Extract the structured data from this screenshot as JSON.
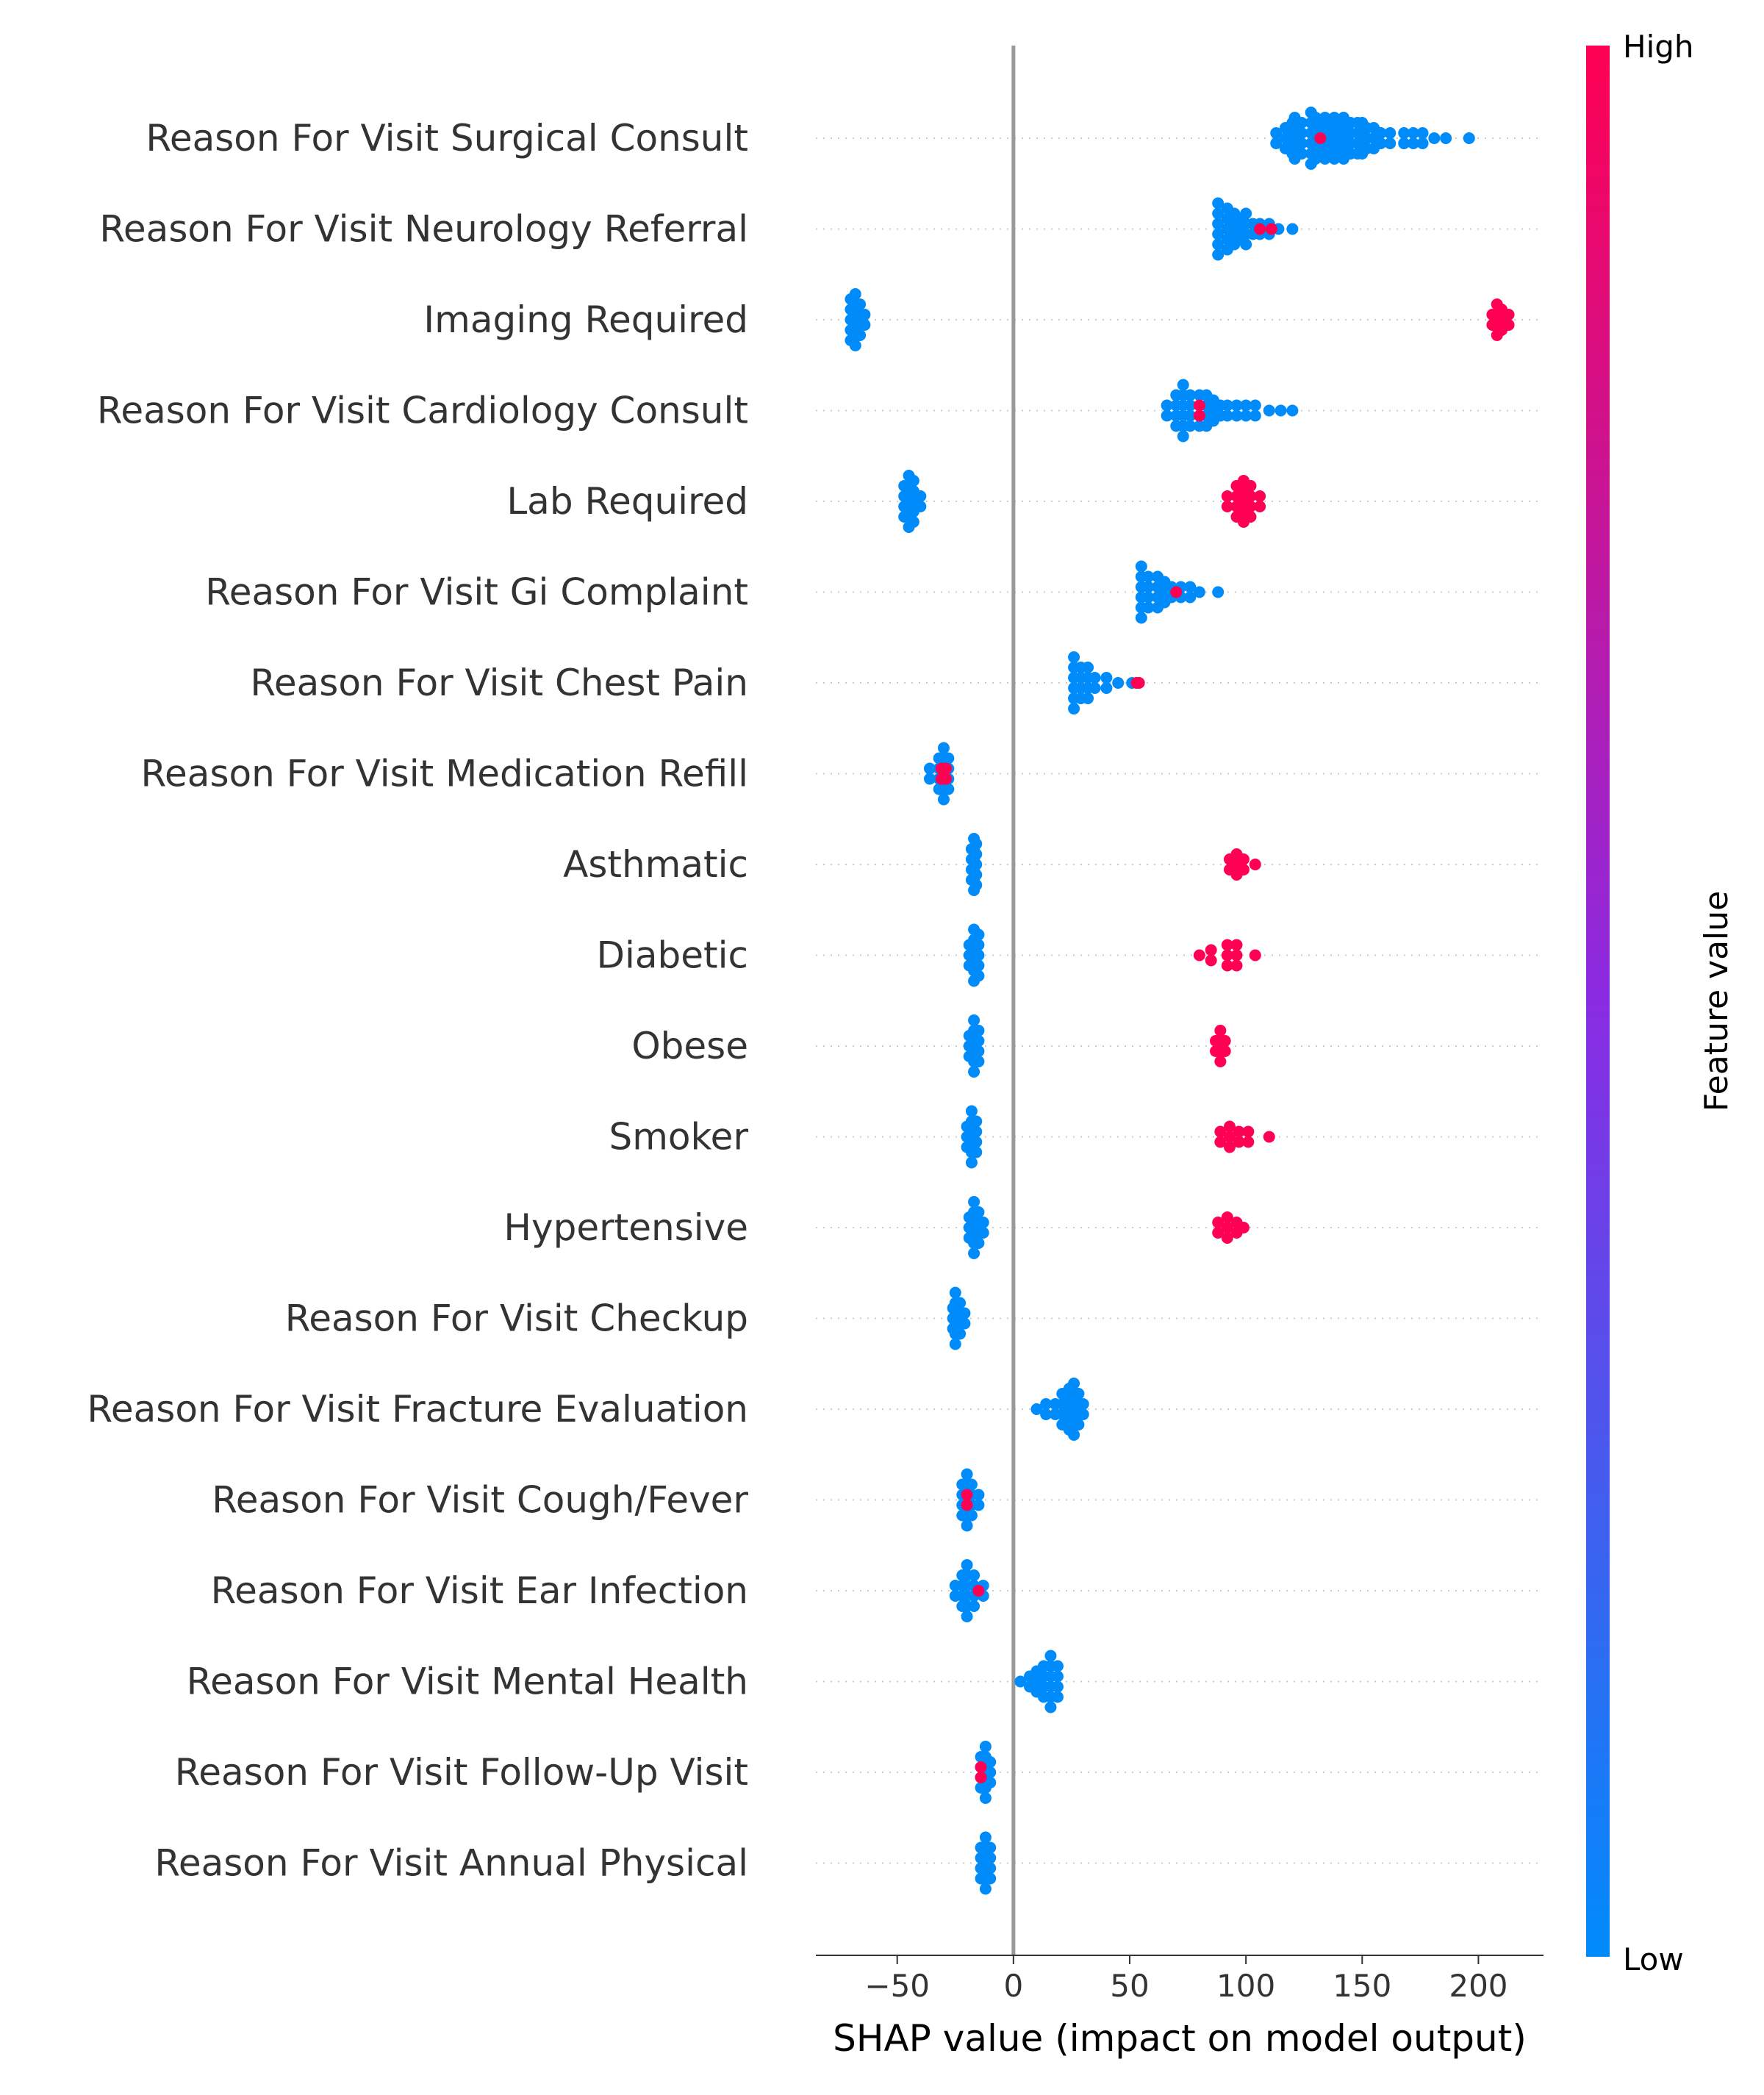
{
  "chart_data": {
    "type": "scatter",
    "subtype": "shap-beeswarm",
    "xlabel": "SHAP value (impact on model output)",
    "xlim": [
      -85,
      228
    ],
    "xticks": [
      {
        "value": -50,
        "label": "−50"
      },
      {
        "value": 0,
        "label": "0"
      },
      {
        "value": 50,
        "label": "50"
      },
      {
        "value": 100,
        "label": "100"
      },
      {
        "value": 150,
        "label": "150"
      },
      {
        "value": 200,
        "label": "200"
      }
    ],
    "grid": false,
    "zero_line": true,
    "colorbar": {
      "title": "Feature value",
      "high_label": "High",
      "low_label": "Low",
      "high_color": "#ff0052",
      "low_color": "#008bfb",
      "mid_color": "#8a2be2"
    },
    "features": [
      {
        "name": "Reason For Visit Surgical Consult",
        "low": [
          [
            113,
            0.3
          ],
          [
            117,
            0.5
          ],
          [
            120,
            0.6
          ],
          [
            121,
            0.8
          ],
          [
            124,
            0.7
          ],
          [
            128,
            1.0
          ],
          [
            130,
            0.9
          ],
          [
            132,
            0.6
          ],
          [
            134,
            0.8
          ],
          [
            136,
            0.7
          ],
          [
            138,
            0.9
          ],
          [
            140,
            0.6
          ],
          [
            142,
            0.8
          ],
          [
            145,
            0.7
          ],
          [
            148,
            0.6
          ],
          [
            150,
            0.7
          ],
          [
            152,
            0.5
          ],
          [
            155,
            0.5
          ],
          [
            158,
            0.4
          ],
          [
            162,
            0.3
          ],
          [
            168,
            0.3
          ],
          [
            172,
            0.3
          ],
          [
            176,
            0.3
          ],
          [
            181,
            0.2
          ],
          [
            186,
            0.2
          ],
          [
            196,
            0.2
          ]
        ],
        "high": [
          [
            132,
            0.2
          ]
        ]
      },
      {
        "name": "Reason For Visit Neurology Referral",
        "low": [
          [
            88,
            1.0
          ],
          [
            92,
            0.8
          ],
          [
            95,
            0.6
          ],
          [
            98,
            0.5
          ],
          [
            100,
            0.7
          ],
          [
            103,
            0.4
          ],
          [
            106,
            0.4
          ],
          [
            110,
            0.3
          ],
          [
            114,
            0.2
          ],
          [
            120,
            0.2
          ]
        ],
        "high": [
          [
            106,
            0.2
          ],
          [
            111,
            0.2
          ]
        ]
      },
      {
        "name": "Imaging Required",
        "low": [
          [
            -70,
            0.8
          ],
          [
            -68,
            1.0
          ],
          [
            -66,
            0.7
          ],
          [
            -64,
            0.4
          ]
        ],
        "high": [
          [
            206,
            0.4
          ],
          [
            208,
            0.6
          ],
          [
            210,
            0.5
          ],
          [
            213,
            0.3
          ]
        ]
      },
      {
        "name": "Reason For Visit Cardiology Consult",
        "low": [
          [
            66,
            0.4
          ],
          [
            70,
            0.7
          ],
          [
            73,
            1.0
          ],
          [
            76,
            0.6
          ],
          [
            80,
            0.7
          ],
          [
            83,
            0.6
          ],
          [
            86,
            0.5
          ],
          [
            89,
            0.4
          ],
          [
            92,
            0.4
          ],
          [
            96,
            0.3
          ],
          [
            100,
            0.3
          ],
          [
            104,
            0.3
          ],
          [
            110,
            0.2
          ],
          [
            115,
            0.2
          ],
          [
            120,
            0.2
          ]
        ],
        "high": [
          [
            80,
            0.3
          ]
        ]
      },
      {
        "name": "Lab Required",
        "low": [
          [
            -47,
            0.6
          ],
          [
            -45,
            1.0
          ],
          [
            -43,
            0.8
          ],
          [
            -40,
            0.4
          ]
        ],
        "high": [
          [
            92,
            0.4
          ],
          [
            96,
            0.7
          ],
          [
            99,
            0.9
          ],
          [
            102,
            0.6
          ],
          [
            106,
            0.3
          ]
        ]
      },
      {
        "name": "Reason For Visit Gi Complaint",
        "low": [
          [
            55,
            1.0
          ],
          [
            58,
            0.7
          ],
          [
            62,
            0.6
          ],
          [
            65,
            0.5
          ],
          [
            68,
            0.4
          ],
          [
            72,
            0.4
          ],
          [
            76,
            0.3
          ],
          [
            80,
            0.2
          ],
          [
            88,
            0.2
          ]
        ],
        "high": [
          [
            70,
            0.2
          ]
        ]
      },
      {
        "name": "Reason For Visit Chest Pain",
        "low": [
          [
            26,
            1.0
          ],
          [
            29,
            0.7
          ],
          [
            32,
            0.6
          ],
          [
            35,
            0.4
          ],
          [
            40,
            0.3
          ],
          [
            45,
            0.2
          ],
          [
            51,
            0.2
          ]
        ],
        "high": [
          [
            53,
            0.2
          ],
          [
            54,
            0.2
          ]
        ]
      },
      {
        "name": "Reason For Visit Medication Refill",
        "low": [
          [
            -36,
            0.3
          ],
          [
            -32,
            0.6
          ],
          [
            -30,
            1.0
          ],
          [
            -28,
            0.6
          ]
        ],
        "high": [
          [
            -31,
            0.4
          ],
          [
            -29,
            0.3
          ]
        ]
      },
      {
        "name": "Asthmatic",
        "low": [
          [
            -18,
            0.6
          ],
          [
            -17,
            1.0
          ],
          [
            -16,
            0.9
          ]
        ],
        "high": [
          [
            93,
            0.4
          ],
          [
            96,
            0.5
          ],
          [
            99,
            0.3
          ],
          [
            104,
            0.2
          ]
        ]
      },
      {
        "name": "Diabetic",
        "low": [
          [
            -19,
            0.5
          ],
          [
            -17,
            1.0
          ],
          [
            -15,
            0.8
          ]
        ],
        "high": [
          [
            80,
            0.2
          ],
          [
            85,
            0.3
          ],
          [
            92,
            0.5
          ],
          [
            96,
            0.5
          ],
          [
            104,
            0.2
          ]
        ]
      },
      {
        "name": "Obese",
        "low": [
          [
            -19,
            0.5
          ],
          [
            -17,
            1.0
          ],
          [
            -15,
            0.7
          ]
        ],
        "high": [
          [
            87,
            0.4
          ],
          [
            89,
            0.6
          ],
          [
            91,
            0.4
          ]
        ]
      },
      {
        "name": "Smoker",
        "low": [
          [
            -20,
            0.5
          ],
          [
            -18,
            1.0
          ],
          [
            -16,
            0.7
          ]
        ],
        "high": [
          [
            89,
            0.3
          ],
          [
            93,
            0.5
          ],
          [
            97,
            0.4
          ],
          [
            101,
            0.3
          ],
          [
            110,
            0.2
          ]
        ]
      },
      {
        "name": "Hypertensive",
        "low": [
          [
            -19,
            0.5
          ],
          [
            -17,
            1.0
          ],
          [
            -15,
            0.6
          ],
          [
            -13,
            0.3
          ]
        ],
        "high": [
          [
            88,
            0.4
          ],
          [
            92,
            0.5
          ],
          [
            96,
            0.3
          ],
          [
            99,
            0.2
          ]
        ]
      },
      {
        "name": "Reason For Visit Checkup",
        "low": [
          [
            -26,
            0.5
          ],
          [
            -25,
            1.0
          ],
          [
            -23,
            0.7
          ],
          [
            -21,
            0.3
          ]
        ],
        "high": []
      },
      {
        "name": "Reason For Visit Fracture Evaluation",
        "low": [
          [
            10,
            0.2
          ],
          [
            14,
            0.3
          ],
          [
            18,
            0.4
          ],
          [
            21,
            0.6
          ],
          [
            24,
            0.8
          ],
          [
            26,
            1.0
          ],
          [
            28,
            0.7
          ],
          [
            30,
            0.4
          ]
        ],
        "high": []
      },
      {
        "name": "Reason For Visit Cough/Fever",
        "low": [
          [
            -22,
            0.6
          ],
          [
            -20,
            1.0
          ],
          [
            -18,
            0.6
          ],
          [
            -15,
            0.3
          ]
        ],
        "high": [
          [
            -20,
            0.4
          ]
        ]
      },
      {
        "name": "Reason For Visit Ear Infection",
        "low": [
          [
            -25,
            0.3
          ],
          [
            -22,
            0.6
          ],
          [
            -20,
            1.0
          ],
          [
            -17,
            0.7
          ],
          [
            -13,
            0.3
          ]
        ],
        "high": [
          [
            -15,
            0.2
          ]
        ]
      },
      {
        "name": "Reason For Visit Mental Health",
        "low": [
          [
            3,
            0.2
          ],
          [
            7,
            0.3
          ],
          [
            10,
            0.5
          ],
          [
            13,
            0.7
          ],
          [
            16,
            1.0
          ],
          [
            19,
            0.6
          ]
        ],
        "high": []
      },
      {
        "name": "Reason For Visit Follow-Up Visit",
        "low": [
          [
            -14,
            0.6
          ],
          [
            -12,
            1.0
          ],
          [
            -10,
            0.5
          ]
        ],
        "high": [
          [
            -14,
            0.3
          ]
        ]
      },
      {
        "name": "Reason For Visit Annual Physical",
        "low": [
          [
            -14,
            0.6
          ],
          [
            -12,
            1.0
          ],
          [
            -10,
            0.6
          ]
        ],
        "high": []
      }
    ]
  }
}
